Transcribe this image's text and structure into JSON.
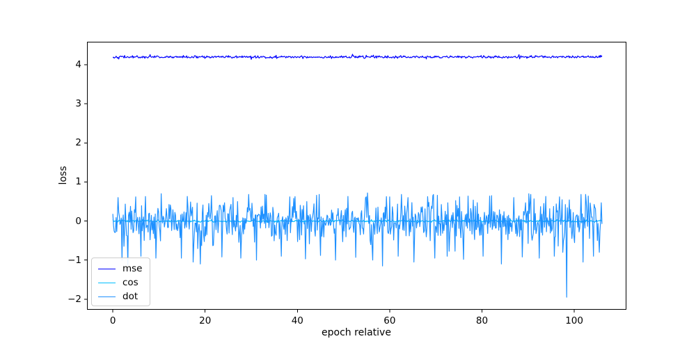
{
  "chart_data": {
    "type": "line",
    "title": "",
    "xlabel": "epoch relative",
    "ylabel": "loss",
    "xlim": [
      -5.6,
      111.3
    ],
    "ylim": [
      -2.27,
      4.59
    ],
    "xticks": [
      0,
      20,
      40,
      60,
      80,
      100
    ],
    "xtick_labels": [
      "0",
      "20",
      "40",
      "60",
      "80",
      "100"
    ],
    "yticks": [
      -2,
      -1,
      0,
      1,
      2,
      3,
      4
    ],
    "ytick_labels": [
      "−2",
      "−1",
      "0",
      "1",
      "2",
      "3",
      "4"
    ],
    "grid": false,
    "legend_position": "lower left",
    "axis_color": "#000000",
    "background_color": "#ffffff",
    "data_x_range": [
      0,
      106
    ],
    "series": [
      {
        "name": "mse",
        "color": "#0000ff",
        "description": "nearly flat noisy line at loss ~ 4.2",
        "mean": 4.2,
        "noise_std": 0.016,
        "clip": [
          -0.055,
          0.05
        ],
        "points": 750,
        "x_start": 0,
        "x_end": 106,
        "seed": 42,
        "outliers": [
          [
            8,
            4.26
          ],
          [
            30,
            4.14
          ],
          [
            52,
            4.27
          ],
          [
            68,
            4.15
          ],
          [
            88,
            4.26
          ]
        ]
      },
      {
        "name": "cos",
        "color": "#00bfff",
        "description": "nearly flat line at loss ~ 0, almost entirely hidden behind the dot series",
        "mean": 0.0,
        "noise_std": 0.014,
        "clip": [
          -0.04,
          0.04
        ],
        "points": 750,
        "x_start": 0,
        "x_end": 106,
        "seed": 7,
        "outliers": []
      },
      {
        "name": "dot",
        "color": "#1e90ff",
        "description": "dense noisy line around loss ~ 0, band roughly +0.65 to -0.8, frequent dips near -1, one large spike to -1.95 near epoch 98",
        "mean": 0.0,
        "noise_std": 0.27,
        "clip": [
          -0.8,
          0.68
        ],
        "points": 750,
        "x_start": 0,
        "x_end": 106,
        "seed": 1337,
        "outliers": [
          [
            2.0,
            -1.0
          ],
          [
            3.3,
            -1.12
          ],
          [
            6.1,
            -0.9
          ],
          [
            9.4,
            -0.95
          ],
          [
            14.8,
            -0.95
          ],
          [
            17.4,
            -1.05
          ],
          [
            19.0,
            -1.1
          ],
          [
            23.6,
            -0.92
          ],
          [
            27.8,
            -0.95
          ],
          [
            31.2,
            -1.0
          ],
          [
            36.5,
            -0.9
          ],
          [
            41.8,
            -0.97
          ],
          [
            45.0,
            -0.88
          ],
          [
            48.2,
            -1.0
          ],
          [
            52.7,
            -0.93
          ],
          [
            56.3,
            -1.0
          ],
          [
            58.5,
            -1.15
          ],
          [
            61.9,
            -0.9
          ],
          [
            65.3,
            -1.05
          ],
          [
            69.8,
            -0.95
          ],
          [
            72.5,
            -0.9
          ],
          [
            76.0,
            -0.98
          ],
          [
            80.3,
            -0.9
          ],
          [
            84.2,
            -1.1
          ],
          [
            88.7,
            -0.92
          ],
          [
            92.4,
            -0.95
          ],
          [
            95.6,
            -0.9
          ],
          [
            98.3,
            -1.95
          ],
          [
            101.9,
            -1.05
          ],
          [
            104.2,
            -0.9
          ],
          [
            1.2,
            0.6
          ],
          [
            5.0,
            0.62
          ],
          [
            10.5,
            0.7
          ],
          [
            16.2,
            0.63
          ],
          [
            21.4,
            0.65
          ],
          [
            26.0,
            0.6
          ],
          [
            33.0,
            0.68
          ],
          [
            38.4,
            0.62
          ],
          [
            44.1,
            0.66
          ],
          [
            50.9,
            0.63
          ],
          [
            55.2,
            0.72
          ],
          [
            60.0,
            0.62
          ],
          [
            64.0,
            0.6
          ],
          [
            70.4,
            0.66
          ],
          [
            75.2,
            0.62
          ],
          [
            81.6,
            0.64
          ],
          [
            86.9,
            0.6
          ],
          [
            90.1,
            0.7
          ],
          [
            96.8,
            0.62
          ],
          [
            103.0,
            0.64
          ]
        ]
      }
    ]
  },
  "legend": {
    "items": [
      "mse",
      "cos",
      "dot"
    ]
  }
}
